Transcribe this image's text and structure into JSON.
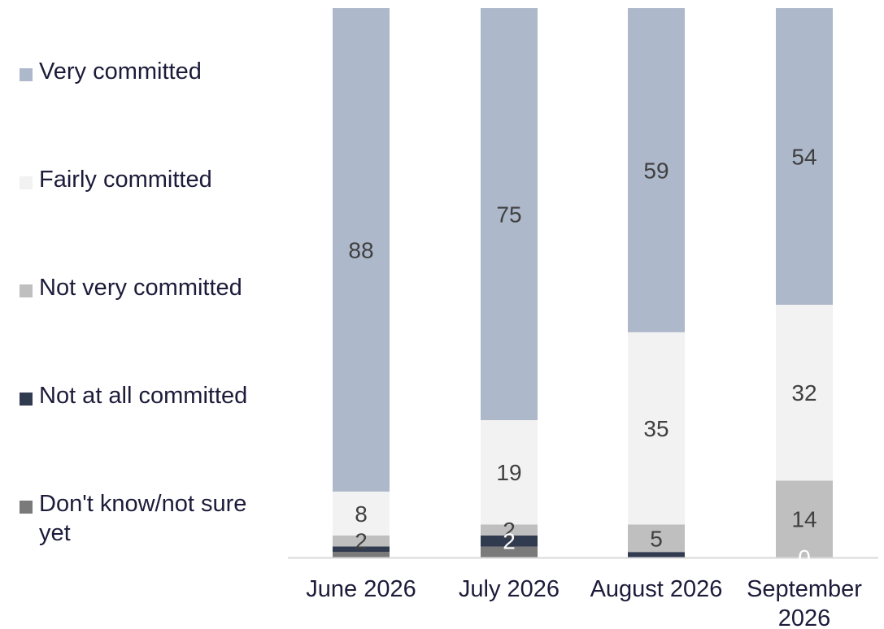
{
  "chart_data": {
    "type": "bar",
    "stacked": true,
    "orientation": "vertical",
    "categories": [
      "June 2026",
      "July 2026",
      "August 2026",
      "September 2026"
    ],
    "series": [
      {
        "name": "Don't know/not sure yet",
        "color": "#7a7a7a",
        "values": [
          1,
          2,
          0,
          0
        ]
      },
      {
        "name": "Not at all committed",
        "color": "#313b50",
        "values": [
          1,
          2,
          1,
          0
        ]
      },
      {
        "name": "Not very committed",
        "color": "#bfbfbf",
        "values": [
          2,
          2,
          5,
          14
        ]
      },
      {
        "name": "Fairly committed",
        "color": "#f2f2f2",
        "values": [
          8,
          19,
          35,
          32
        ]
      },
      {
        "name": "Very committed",
        "color": "#adb8cb",
        "values": [
          88,
          75,
          59,
          54
        ]
      }
    ],
    "data_labels": [
      {
        "category": "June 2026",
        "series": "Very committed",
        "text": "88"
      },
      {
        "category": "June 2026",
        "series": "Fairly committed",
        "text": "8"
      },
      {
        "category": "June 2026",
        "series": "Not very committed",
        "text": "2"
      },
      {
        "category": "July 2026",
        "series": "Very committed",
        "text": "75"
      },
      {
        "category": "July 2026",
        "series": "Fairly committed",
        "text": "19"
      },
      {
        "category": "July 2026",
        "series": "Not very committed",
        "text": "2"
      },
      {
        "category": "July 2026",
        "series": "Not at all committed",
        "text": "2"
      },
      {
        "category": "August 2026",
        "series": "Very committed",
        "text": "59"
      },
      {
        "category": "August 2026",
        "series": "Fairly committed",
        "text": "35"
      },
      {
        "category": "August 2026",
        "series": "Not very committed",
        "text": "5"
      },
      {
        "category": "September 2026",
        "series": "Very committed",
        "text": "54"
      },
      {
        "category": "September 2026",
        "series": "Fairly committed",
        "text": "32"
      },
      {
        "category": "September 2026",
        "series": "Not very committed",
        "text": "14"
      },
      {
        "category": "September 2026",
        "series": "Not at all committed",
        "text": "0"
      }
    ],
    "legend": {
      "placement": "left",
      "order": [
        "Very committed",
        "Fairly committed",
        "Not very committed",
        "Not at all committed",
        "Don't know/not sure yet"
      ]
    },
    "ylim": [
      0,
      100
    ],
    "grid": false,
    "title": "",
    "xlabel": "",
    "ylabel": ""
  }
}
